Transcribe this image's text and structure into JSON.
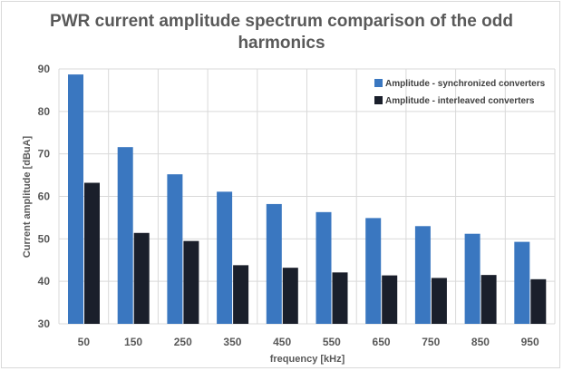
{
  "chart_data": {
    "type": "bar",
    "title_line1": "PWR current amplitude spectrum comparison of the odd",
    "title_line2": "harmonics",
    "xlabel": "frequency [kHz]",
    "ylabel": "Current amplitude [dBuA]",
    "ylim": [
      30,
      90
    ],
    "yticks": [
      30,
      40,
      50,
      60,
      70,
      80,
      90
    ],
    "grid": true,
    "legend_position": "top-right",
    "categories": [
      "50",
      "150",
      "250",
      "350",
      "450",
      "550",
      "650",
      "750",
      "850",
      "950"
    ],
    "series": [
      {
        "name": "Amplitude - synchronized converters",
        "color": "#3a77c0",
        "values": [
          88.7,
          71.6,
          65.2,
          61.1,
          58.2,
          56.3,
          54.9,
          53.0,
          51.2,
          49.3
        ]
      },
      {
        "name": "Amplitude - interleaved converters",
        "color": "#1a1f2b",
        "values": [
          63.2,
          51.4,
          49.5,
          43.8,
          43.2,
          42.1,
          41.4,
          40.8,
          41.5,
          40.5
        ]
      }
    ]
  }
}
